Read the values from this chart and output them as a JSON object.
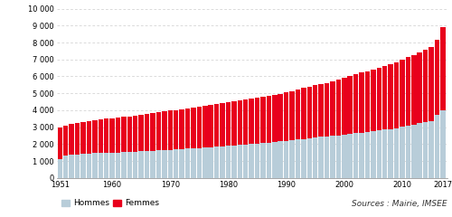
{
  "years": [
    1951,
    1952,
    1953,
    1954,
    1955,
    1956,
    1957,
    1958,
    1959,
    1960,
    1961,
    1962,
    1963,
    1964,
    1965,
    1966,
    1967,
    1968,
    1969,
    1970,
    1971,
    1972,
    1973,
    1974,
    1975,
    1976,
    1977,
    1978,
    1979,
    1980,
    1981,
    1982,
    1983,
    1984,
    1985,
    1986,
    1987,
    1988,
    1989,
    1990,
    1991,
    1992,
    1993,
    1994,
    1995,
    1996,
    1997,
    1998,
    1999,
    2000,
    2001,
    2002,
    2003,
    2004,
    2005,
    2006,
    2007,
    2008,
    2009,
    2010,
    2011,
    2012,
    2013,
    2014,
    2015,
    2016,
    2017
  ],
  "hommes": [
    1100,
    1350,
    1370,
    1400,
    1420,
    1440,
    1460,
    1480,
    1490,
    1500,
    1510,
    1520,
    1530,
    1550,
    1570,
    1590,
    1610,
    1630,
    1650,
    1670,
    1690,
    1710,
    1730,
    1750,
    1770,
    1790,
    1810,
    1840,
    1870,
    1900,
    1930,
    1950,
    1980,
    2010,
    2040,
    2060,
    2090,
    2120,
    2160,
    2200,
    2240,
    2280,
    2310,
    2350,
    2390,
    2420,
    2450,
    2480,
    2510,
    2550,
    2600,
    2640,
    2680,
    2720,
    2760,
    2800,
    2850,
    2900,
    2950,
    3020,
    3090,
    3160,
    3230,
    3300,
    3380,
    3730,
    4020
  ],
  "femmes": [
    1900,
    1750,
    1830,
    1870,
    1880,
    1930,
    1960,
    1990,
    2010,
    2040,
    2060,
    2080,
    2100,
    2120,
    2160,
    2190,
    2220,
    2250,
    2270,
    2300,
    2320,
    2340,
    2360,
    2400,
    2430,
    2460,
    2490,
    2520,
    2550,
    2570,
    2590,
    2630,
    2660,
    2680,
    2710,
    2740,
    2760,
    2790,
    2820,
    2850,
    2900,
    2960,
    3000,
    3040,
    3080,
    3110,
    3140,
    3200,
    3280,
    3390,
    3440,
    3490,
    3540,
    3580,
    3630,
    3700,
    3760,
    3820,
    3900,
    3960,
    4050,
    4120,
    4200,
    4280,
    4360,
    4430,
    4870
  ],
  "color_hommes": "#b8cdd9",
  "color_femmes": "#e8001c",
  "ytick_values": [
    0,
    1000,
    2000,
    3000,
    4000,
    5000,
    6000,
    7000,
    8000,
    9000,
    10000
  ],
  "ytick_labels": [
    "0",
    "1 000",
    "2 000",
    "3 000",
    "4 000",
    "5 000",
    "6 000",
    "7 000",
    "8 000",
    "9 000",
    "10 000"
  ],
  "xtick_years": [
    1951,
    1960,
    1970,
    1980,
    1990,
    2000,
    2010,
    2017
  ],
  "legend_hommes": "Hommes",
  "legend_femmes": "Femmes",
  "source_text": "Sources : Mairie, IMSEE",
  "grid_color": "#cccccc",
  "background_color": "#ffffff"
}
